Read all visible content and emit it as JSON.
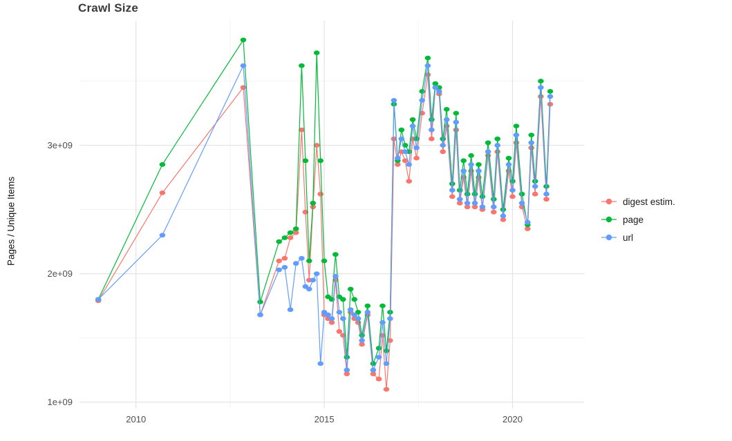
{
  "chart_data": {
    "type": "line",
    "title": "Crawl Size",
    "ylabel": "Pages / Unique Items",
    "xlabel": "",
    "y_unit": "billions (1e9)",
    "xlim": [
      2008.5,
      2021.9
    ],
    "ylim": [
      0.95,
      3.97
    ],
    "grid": true,
    "legend_position": "right",
    "axes": {
      "x": {
        "major": [
          {
            "value": 2010,
            "label": "2010"
          },
          {
            "value": 2015,
            "label": "2015"
          },
          {
            "value": 2020,
            "label": "2020"
          }
        ],
        "minor": [
          2012.5,
          2017.5
        ]
      },
      "y": {
        "major": [
          {
            "value": 1,
            "label": "1e+09"
          },
          {
            "value": 2,
            "label": "2e+09"
          },
          {
            "value": 3,
            "label": "3e+09"
          }
        ],
        "minor": [
          1.5,
          2.5,
          3.5
        ]
      }
    },
    "x": [
      2009.0,
      2010.7,
      2012.85,
      2013.3,
      2013.8,
      2013.95,
      2014.1,
      2014.25,
      2014.4,
      2014.5,
      2014.6,
      2014.7,
      2014.8,
      2014.9,
      2015.0,
      2015.1,
      2015.2,
      2015.3,
      2015.4,
      2015.5,
      2015.6,
      2015.7,
      2015.8,
      2015.9,
      2016.0,
      2016.15,
      2016.3,
      2016.45,
      2016.55,
      2016.65,
      2016.75,
      2016.85,
      2016.95,
      2017.05,
      2017.15,
      2017.25,
      2017.35,
      2017.45,
      2017.6,
      2017.75,
      2017.85,
      2017.95,
      2018.05,
      2018.15,
      2018.25,
      2018.4,
      2018.5,
      2018.6,
      2018.7,
      2018.8,
      2018.9,
      2019.0,
      2019.1,
      2019.2,
      2019.35,
      2019.5,
      2019.6,
      2019.75,
      2019.9,
      2020.0,
      2020.1,
      2020.25,
      2020.4,
      2020.5,
      2020.6,
      2020.75,
      2020.9,
      2021.0
    ],
    "series": [
      {
        "name": "digest estim.",
        "color": "#F8766D",
        "y": [
          1.79,
          2.63,
          3.45,
          1.68,
          2.1,
          2.12,
          2.28,
          2.32,
          3.12,
          2.48,
          1.95,
          2.52,
          3.0,
          2.62,
          1.68,
          1.65,
          1.62,
          1.95,
          1.55,
          1.52,
          1.22,
          1.7,
          1.65,
          1.62,
          1.45,
          1.68,
          1.22,
          1.18,
          1.52,
          1.1,
          1.48,
          3.05,
          2.85,
          2.95,
          2.88,
          2.72,
          3.05,
          2.9,
          3.25,
          3.55,
          3.05,
          3.45,
          3.4,
          2.95,
          3.15,
          2.6,
          3.12,
          2.55,
          2.75,
          2.52,
          2.8,
          2.52,
          2.75,
          2.5,
          2.92,
          2.48,
          2.95,
          2.42,
          2.8,
          2.6,
          3.02,
          2.52,
          2.35,
          2.98,
          2.62,
          3.38,
          2.58,
          3.32
        ]
      },
      {
        "name": "page",
        "color": "#00BA38",
        "y": [
          1.8,
          2.85,
          3.82,
          1.78,
          2.25,
          2.28,
          2.32,
          2.35,
          3.62,
          2.88,
          2.1,
          2.55,
          3.72,
          2.88,
          2.1,
          1.82,
          1.8,
          2.15,
          1.82,
          1.8,
          1.35,
          1.88,
          1.8,
          1.7,
          1.52,
          1.75,
          1.3,
          1.42,
          1.75,
          1.4,
          1.7,
          3.32,
          2.88,
          3.12,
          3.0,
          2.95,
          3.2,
          3.05,
          3.42,
          3.68,
          3.2,
          3.48,
          3.45,
          3.05,
          3.28,
          2.7,
          3.25,
          2.65,
          2.88,
          2.62,
          2.92,
          2.62,
          2.85,
          2.6,
          3.02,
          2.58,
          3.05,
          2.5,
          2.9,
          2.72,
          3.15,
          2.62,
          2.38,
          3.08,
          2.72,
          3.5,
          2.68,
          3.42
        ]
      },
      {
        "name": "url",
        "color": "#619CFF",
        "y": [
          1.8,
          2.3,
          3.62,
          1.68,
          2.03,
          2.05,
          1.72,
          2.08,
          2.12,
          1.9,
          1.88,
          1.95,
          2.0,
          1.3,
          1.7,
          1.68,
          1.65,
          1.98,
          1.7,
          1.65,
          1.25,
          1.72,
          1.68,
          1.65,
          1.48,
          1.7,
          1.25,
          1.35,
          1.62,
          1.3,
          1.65,
          3.35,
          2.9,
          3.05,
          2.95,
          2.85,
          3.15,
          2.98,
          3.35,
          3.62,
          3.12,
          3.45,
          3.42,
          3.0,
          3.2,
          2.65,
          3.18,
          2.58,
          2.8,
          2.55,
          2.85,
          2.55,
          2.8,
          2.52,
          2.95,
          2.52,
          3.0,
          2.45,
          2.85,
          2.65,
          3.08,
          2.55,
          2.4,
          3.02,
          2.68,
          3.45,
          2.62,
          3.38
        ]
      }
    ]
  }
}
